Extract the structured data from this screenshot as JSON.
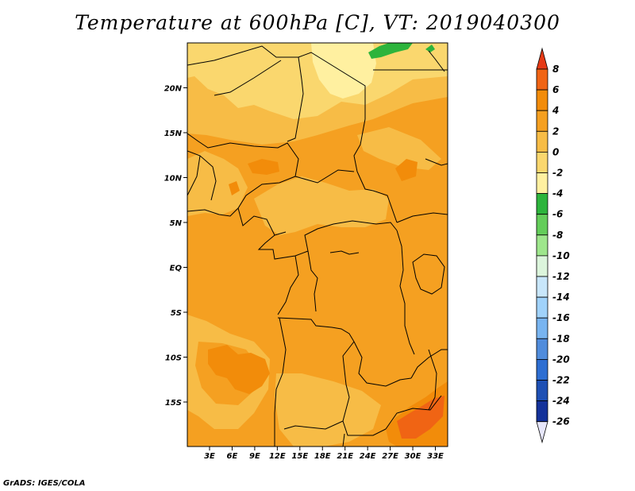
{
  "title": "Temperature at 600hPa [C], VT: 2019040300",
  "credit": "GrADS: IGES/COLA",
  "chart_data": {
    "type": "heatmap",
    "variable": "Temperature",
    "level": "600hPa",
    "units": "C",
    "valid_time": "2019040300",
    "x_ticks": [
      "3E",
      "6E",
      "9E",
      "12E",
      "15E",
      "18E",
      "21E",
      "24E",
      "27E",
      "30E",
      "33E"
    ],
    "y_ticks": [
      "20N",
      "15N",
      "10N",
      "5N",
      "EQ",
      "5S",
      "10S",
      "15S"
    ],
    "colorbar": {
      "levels": [
        8,
        6,
        4,
        2,
        0,
        -2,
        -4,
        -6,
        -8,
        -10,
        -12,
        -14,
        -16,
        -18,
        -20,
        -22,
        -24,
        -26
      ],
      "colors": [
        "#e63a16",
        "#f06414",
        "#f28c0a",
        "#f5a021",
        "#f7bc46",
        "#fad76e",
        "#fff0a0",
        "#2db43c",
        "#64cd5a",
        "#9ee68c",
        "#dcf5dc",
        "#c8e6fa",
        "#a0d2fa",
        "#78b4f0",
        "#508cdc",
        "#2d6ed2",
        "#1e50b4",
        "#14329a",
        "#0a0a6e",
        "#e6e6fa"
      ]
    }
  }
}
